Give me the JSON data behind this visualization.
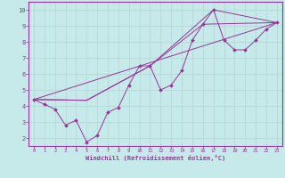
{
  "background_color": "#c6eaea",
  "grid_color": "#aacccc",
  "line_color": "#993399",
  "xlabel": "Windchill (Refroidissement éolien,°C)",
  "xlim": [
    -0.5,
    23.5
  ],
  "ylim": [
    1.5,
    10.5
  ],
  "yticks": [
    2,
    3,
    4,
    5,
    6,
    7,
    8,
    9,
    10
  ],
  "xticks": [
    0,
    1,
    2,
    3,
    4,
    5,
    6,
    7,
    8,
    9,
    10,
    11,
    12,
    13,
    14,
    15,
    16,
    17,
    18,
    19,
    20,
    21,
    22,
    23
  ],
  "series0_x": [
    0,
    1,
    2,
    3,
    4,
    5,
    6,
    7,
    8,
    9,
    10,
    11,
    12,
    13,
    14,
    15,
    16,
    17,
    18,
    19,
    20,
    21,
    22,
    23
  ],
  "series0_y": [
    4.4,
    4.1,
    3.8,
    2.8,
    3.1,
    1.75,
    2.15,
    3.6,
    3.9,
    5.3,
    6.5,
    6.5,
    5.0,
    5.3,
    6.2,
    8.1,
    9.1,
    10.0,
    8.1,
    7.5,
    7.5,
    8.1,
    8.8,
    9.2
  ],
  "series1_x": [
    0,
    23
  ],
  "series1_y": [
    4.4,
    9.2
  ],
  "series2_x": [
    0,
    5,
    11,
    16,
    23
  ],
  "series2_y": [
    4.4,
    4.35,
    6.5,
    9.1,
    9.2
  ],
  "series3_x": [
    0,
    5,
    11,
    17,
    23
  ],
  "series3_y": [
    4.4,
    4.35,
    6.5,
    10.0,
    9.2
  ]
}
